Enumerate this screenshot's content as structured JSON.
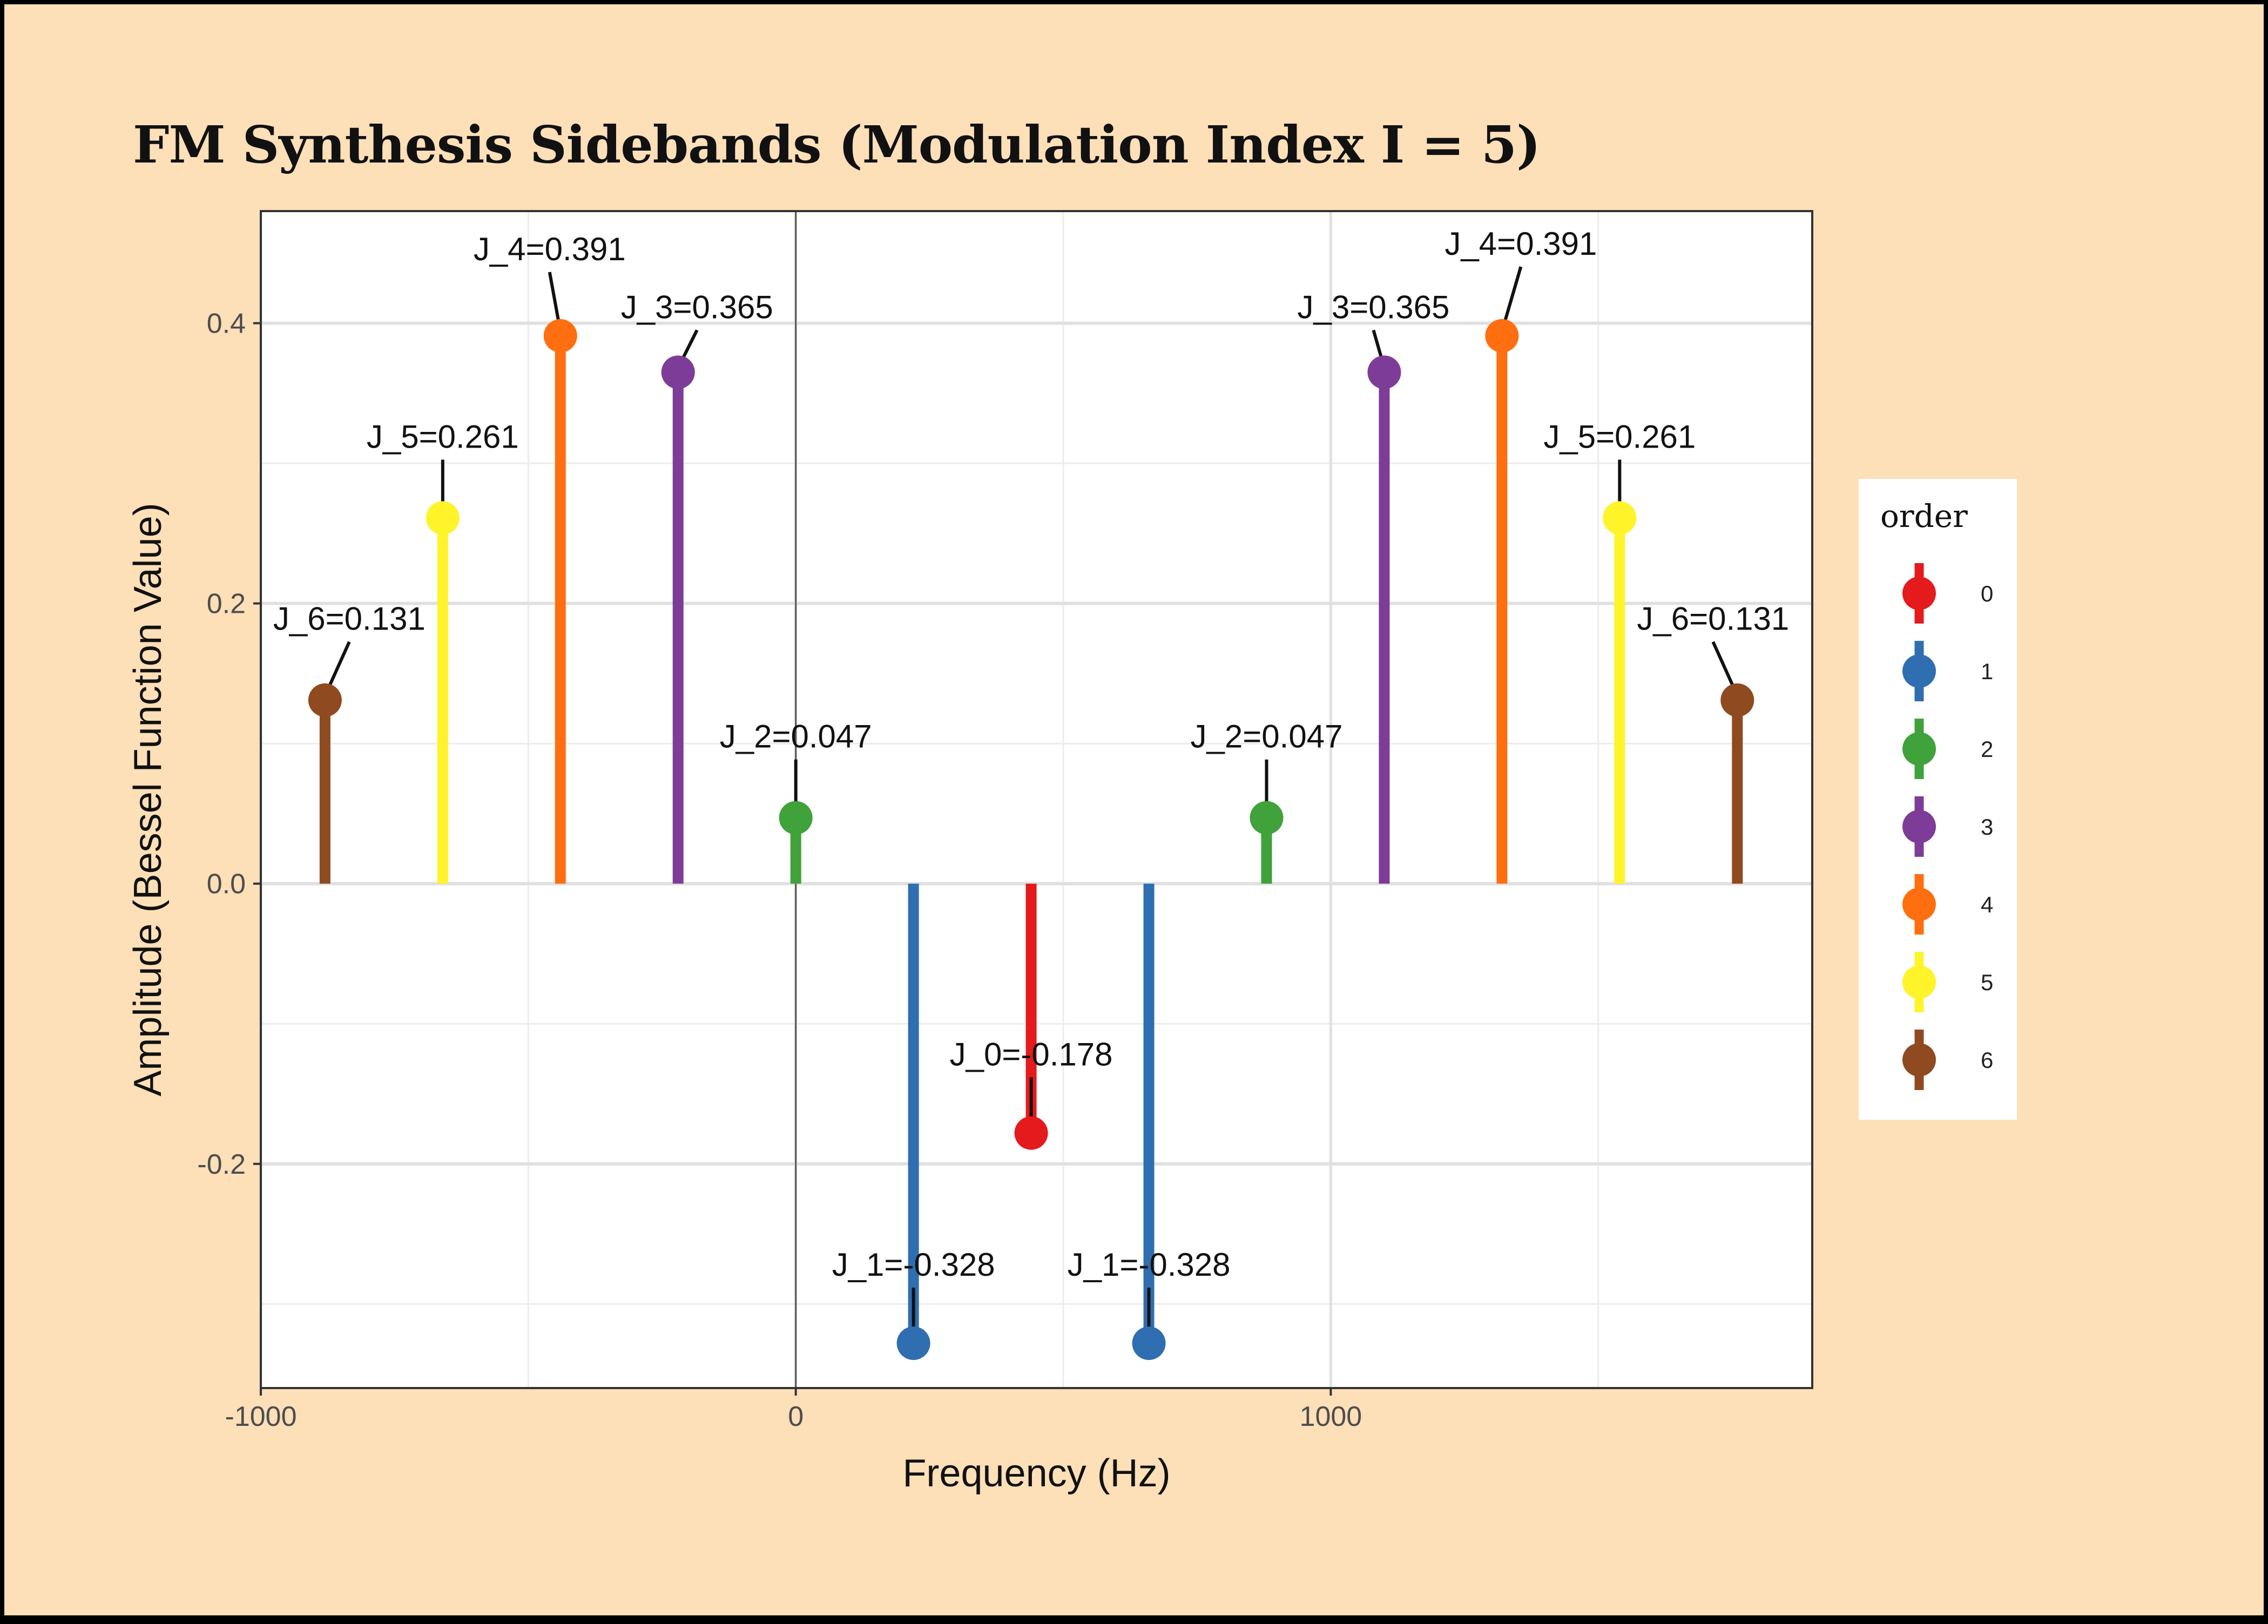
{
  "chart_data": {
    "type": "stem",
    "title": "FM Synthesis Sidebands (Modulation Index I = 5)",
    "xlabel": "Frequency (Hz)",
    "ylabel": "Amplitude (Bessel Function Value)",
    "xlim": [
      -1000,
      1900
    ],
    "ylim": [
      -0.36,
      0.48
    ],
    "xticks": [
      -1000,
      0,
      1000
    ],
    "xtick_labels": [
      "-1000",
      "0",
      "1000"
    ],
    "yticks": [
      -0.2,
      0.0,
      0.2,
      0.4
    ],
    "ytick_labels": [
      "-0.2",
      "0.0",
      "0.2",
      "0.4"
    ],
    "legend_title": "order",
    "legend_position": "right",
    "orders": [
      {
        "order": 0,
        "label": "0",
        "color": "#e41a1c"
      },
      {
        "order": 1,
        "label": "1",
        "color": "#2f6eb0"
      },
      {
        "order": 2,
        "label": "2",
        "color": "#3fa23a"
      },
      {
        "order": 3,
        "label": "3",
        "color": "#7d3c98"
      },
      {
        "order": 4,
        "label": "4",
        "color": "#ff6f0f"
      },
      {
        "order": 5,
        "label": "5",
        "color": "#fff32a"
      },
      {
        "order": 6,
        "label": "6",
        "color": "#8f4a20"
      }
    ],
    "points": [
      {
        "freq": -880,
        "order": 6,
        "value": 0.131,
        "label": "J_6=0.131"
      },
      {
        "freq": -660,
        "order": 5,
        "value": 0.261,
        "label": "J_5=0.261"
      },
      {
        "freq": -440,
        "order": 4,
        "value": 0.391,
        "label": "J_4=0.391"
      },
      {
        "freq": -220,
        "order": 3,
        "value": 0.365,
        "label": "J_3=0.365"
      },
      {
        "freq": 0,
        "order": 2,
        "value": 0.047,
        "label": "J_2=0.047"
      },
      {
        "freq": 220,
        "order": 1,
        "value": -0.328,
        "label": "J_1=-0.328"
      },
      {
        "freq": 440,
        "order": 0,
        "value": -0.178,
        "label": "J_0=-0.178"
      },
      {
        "freq": 660,
        "order": 1,
        "value": -0.328,
        "label": "J_1=-0.328"
      },
      {
        "freq": 880,
        "order": 2,
        "value": 0.047,
        "label": "J_2=0.047"
      },
      {
        "freq": 1100,
        "order": 3,
        "value": 0.365,
        "label": "J_3=0.365"
      },
      {
        "freq": 1320,
        "order": 4,
        "value": 0.391,
        "label": "J_4=0.391"
      },
      {
        "freq": 1540,
        "order": 5,
        "value": 0.261,
        "label": "J_5=0.261"
      },
      {
        "freq": 1760,
        "order": 6,
        "value": 0.131,
        "label": "J_6=0.131"
      }
    ]
  }
}
